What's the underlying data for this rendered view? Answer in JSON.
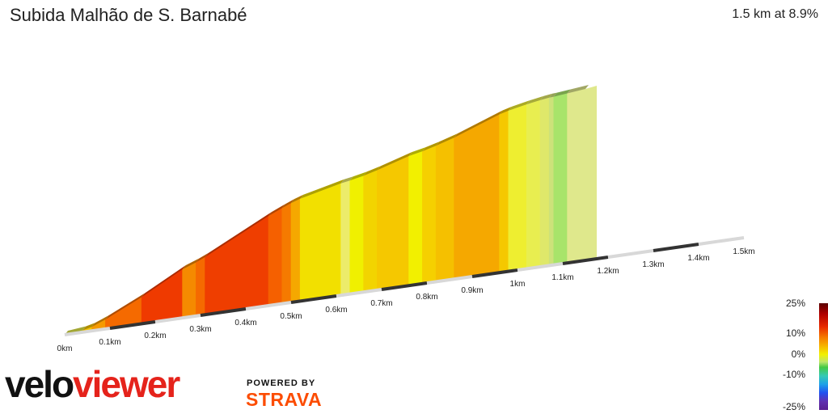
{
  "title": "Subida Malhão de S. Barnabé",
  "summary": "1.5 km at 8.9%",
  "legend": {
    "labels": [
      "25%",
      "10%",
      "0%",
      "-10%",
      "-25%"
    ]
  },
  "branding": {
    "logo_part1": "velo",
    "logo_part2": "viewer",
    "powered_by": "POWERED BY",
    "strava": "STRAVA"
  },
  "chart_data": {
    "type": "area",
    "title": "Subida Malhão de S. Barnabé",
    "xlabel": "",
    "ylabel": "",
    "distance_unit": "km",
    "tick_labels": [
      "0km",
      "0.1km",
      "0.2km",
      "0.3km",
      "0.4km",
      "0.5km",
      "0.6km",
      "0.7km",
      "0.8km",
      "0.9km",
      "1km",
      "1.1km",
      "1.2km",
      "1.3km",
      "1.4km",
      "1.5km"
    ],
    "total_distance_km": 1.5,
    "average_grade_percent": 8.9,
    "segments": [
      {
        "start_km": 0.0,
        "end_km": 0.04,
        "grade": 3,
        "color": "#e2e84a"
      },
      {
        "start_km": 0.04,
        "end_km": 0.06,
        "grade": 7,
        "color": "#f5c400"
      },
      {
        "start_km": 0.06,
        "end_km": 0.09,
        "grade": 12,
        "color": "#f59a00"
      },
      {
        "start_km": 0.09,
        "end_km": 0.17,
        "grade": 14,
        "color": "#f56a00"
      },
      {
        "start_km": 0.17,
        "end_km": 0.26,
        "grade": 16,
        "color": "#ef3a00"
      },
      {
        "start_km": 0.26,
        "end_km": 0.29,
        "grade": 11,
        "color": "#f58a00"
      },
      {
        "start_km": 0.29,
        "end_km": 0.31,
        "grade": 13,
        "color": "#f56a00"
      },
      {
        "start_km": 0.31,
        "end_km": 0.45,
        "grade": 15,
        "color": "#ef3e00"
      },
      {
        "start_km": 0.45,
        "end_km": 0.48,
        "grade": 13,
        "color": "#f56000"
      },
      {
        "start_km": 0.48,
        "end_km": 0.5,
        "grade": 12,
        "color": "#f57a00"
      },
      {
        "start_km": 0.5,
        "end_km": 0.52,
        "grade": 10,
        "color": "#f5a800"
      },
      {
        "start_km": 0.52,
        "end_km": 0.61,
        "grade": 7,
        "color": "#f2e000"
      },
      {
        "start_km": 0.61,
        "end_km": 0.63,
        "grade": 5,
        "color": "#ecec6a"
      },
      {
        "start_km": 0.63,
        "end_km": 0.66,
        "grade": 6,
        "color": "#f0f000"
      },
      {
        "start_km": 0.66,
        "end_km": 0.69,
        "grade": 8,
        "color": "#f2d400"
      },
      {
        "start_km": 0.69,
        "end_km": 0.76,
        "grade": 9,
        "color": "#f5c800"
      },
      {
        "start_km": 0.76,
        "end_km": 0.79,
        "grade": 6,
        "color": "#f2f000"
      },
      {
        "start_km": 0.79,
        "end_km": 0.82,
        "grade": 8,
        "color": "#f5d000"
      },
      {
        "start_km": 0.82,
        "end_km": 0.86,
        "grade": 9,
        "color": "#f5c000"
      },
      {
        "start_km": 0.86,
        "end_km": 0.96,
        "grade": 11,
        "color": "#f5a800"
      },
      {
        "start_km": 0.96,
        "end_km": 0.98,
        "grade": 8,
        "color": "#f5c800"
      },
      {
        "start_km": 0.98,
        "end_km": 1.02,
        "grade": 6,
        "color": "#eeee30"
      },
      {
        "start_km": 1.02,
        "end_km": 1.05,
        "grade": 5,
        "color": "#e8ee50"
      },
      {
        "start_km": 1.05,
        "end_km": 1.07,
        "grade": 4,
        "color": "#dfe86a"
      },
      {
        "start_km": 1.07,
        "end_km": 1.08,
        "grade": 2,
        "color": "#cde27a"
      },
      {
        "start_km": 1.08,
        "end_km": 1.11,
        "grade": 3,
        "color": "#a8e46a"
      },
      {
        "start_km": 1.11,
        "end_km": 1.15,
        "grade": 3,
        "color": "#dfe88c"
      }
    ]
  }
}
